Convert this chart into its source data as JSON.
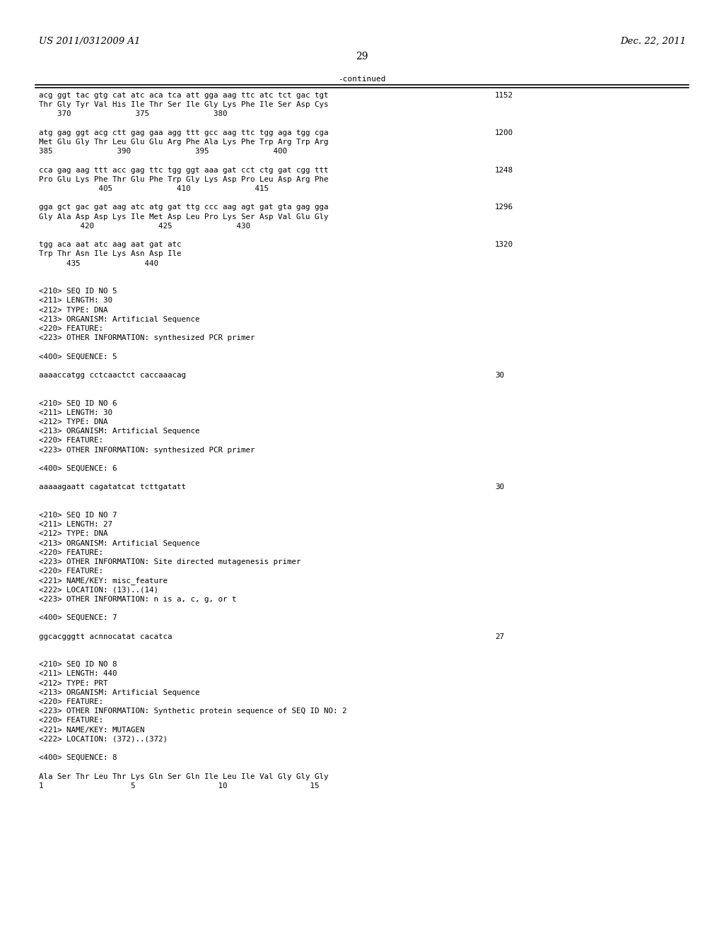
{
  "header_left": "US 2011/0312009 A1",
  "header_right": "Dec. 22, 2011",
  "page_number": "29",
  "continued_label": "-continued",
  "background_color": "#ffffff",
  "text_color": "#000000",
  "content_lines": [
    {
      "text": "acg ggt tac gtg cat atc aca tca att gga aag ttc atc tct gac tgt",
      "num": "1152",
      "indent": false
    },
    {
      "text": "Thr Gly Tyr Val His Ile Thr Ser Ile Gly Lys Phe Ile Ser Asp Cys",
      "num": "",
      "indent": false
    },
    {
      "text": "    370              375              380",
      "num": "",
      "indent": false
    },
    {
      "text": "",
      "num": "",
      "indent": false
    },
    {
      "text": "atg gag ggt acg ctt gag gaa agg ttt gcc aag ttc tgg aga tgg cga",
      "num": "1200",
      "indent": false
    },
    {
      "text": "Met Glu Gly Thr Leu Glu Glu Arg Phe Ala Lys Phe Trp Arg Trp Arg",
      "num": "",
      "indent": false
    },
    {
      "text": "385              390              395              400",
      "num": "",
      "indent": false
    },
    {
      "text": "",
      "num": "",
      "indent": false
    },
    {
      "text": "cca gag aag ttt acc gag ttc tgg ggt aaa gat cct ctg gat cgg ttt",
      "num": "1248",
      "indent": false
    },
    {
      "text": "Pro Glu Lys Phe Thr Glu Phe Trp Gly Lys Asp Pro Leu Asp Arg Phe",
      "num": "",
      "indent": false
    },
    {
      "text": "             405              410              415",
      "num": "",
      "indent": false
    },
    {
      "text": "",
      "num": "",
      "indent": false
    },
    {
      "text": "gga gct gac gat aag atc atg gat ttg ccc aag agt gat gta gag gga",
      "num": "1296",
      "indent": false
    },
    {
      "text": "Gly Ala Asp Asp Lys Ile Met Asp Leu Pro Lys Ser Asp Val Glu Gly",
      "num": "",
      "indent": false
    },
    {
      "text": "         420              425              430",
      "num": "",
      "indent": false
    },
    {
      "text": "",
      "num": "",
      "indent": false
    },
    {
      "text": "tgg aca aat atc aag aat gat atc",
      "num": "1320",
      "indent": false
    },
    {
      "text": "Trp Thr Asn Ile Lys Asn Asp Ile",
      "num": "",
      "indent": false
    },
    {
      "text": "      435              440",
      "num": "",
      "indent": false
    },
    {
      "text": "",
      "num": "",
      "indent": false
    },
    {
      "text": "",
      "num": "",
      "indent": false
    },
    {
      "text": "<210> SEQ ID NO 5",
      "num": "",
      "indent": false
    },
    {
      "text": "<211> LENGTH: 30",
      "num": "",
      "indent": false
    },
    {
      "text": "<212> TYPE: DNA",
      "num": "",
      "indent": false
    },
    {
      "text": "<213> ORGANISM: Artificial Sequence",
      "num": "",
      "indent": false
    },
    {
      "text": "<220> FEATURE:",
      "num": "",
      "indent": false
    },
    {
      "text": "<223> OTHER INFORMATION: synthesized PCR primer",
      "num": "",
      "indent": false
    },
    {
      "text": "",
      "num": "",
      "indent": false
    },
    {
      "text": "<400> SEQUENCE: 5",
      "num": "",
      "indent": false
    },
    {
      "text": "",
      "num": "",
      "indent": false
    },
    {
      "text": "aaaaccatgg cctcaactct caccaaacag",
      "num": "30",
      "indent": false
    },
    {
      "text": "",
      "num": "",
      "indent": false
    },
    {
      "text": "",
      "num": "",
      "indent": false
    },
    {
      "text": "<210> SEQ ID NO 6",
      "num": "",
      "indent": false
    },
    {
      "text": "<211> LENGTH: 30",
      "num": "",
      "indent": false
    },
    {
      "text": "<212> TYPE: DNA",
      "num": "",
      "indent": false
    },
    {
      "text": "<213> ORGANISM: Artificial Sequence",
      "num": "",
      "indent": false
    },
    {
      "text": "<220> FEATURE:",
      "num": "",
      "indent": false
    },
    {
      "text": "<223> OTHER INFORMATION: synthesized PCR primer",
      "num": "",
      "indent": false
    },
    {
      "text": "",
      "num": "",
      "indent": false
    },
    {
      "text": "<400> SEQUENCE: 6",
      "num": "",
      "indent": false
    },
    {
      "text": "",
      "num": "",
      "indent": false
    },
    {
      "text": "aaaaagaatt cagatatcat tcttgatatt",
      "num": "30",
      "indent": false
    },
    {
      "text": "",
      "num": "",
      "indent": false
    },
    {
      "text": "",
      "num": "",
      "indent": false
    },
    {
      "text": "<210> SEQ ID NO 7",
      "num": "",
      "indent": false
    },
    {
      "text": "<211> LENGTH: 27",
      "num": "",
      "indent": false
    },
    {
      "text": "<212> TYPE: DNA",
      "num": "",
      "indent": false
    },
    {
      "text": "<213> ORGANISM: Artificial Sequence",
      "num": "",
      "indent": false
    },
    {
      "text": "<220> FEATURE:",
      "num": "",
      "indent": false
    },
    {
      "text": "<223> OTHER INFORMATION: Site directed mutagenesis primer",
      "num": "",
      "indent": false
    },
    {
      "text": "<220> FEATURE:",
      "num": "",
      "indent": false
    },
    {
      "text": "<221> NAME/KEY: misc_feature",
      "num": "",
      "indent": false
    },
    {
      "text": "<222> LOCATION: (13)..(14)",
      "num": "",
      "indent": false
    },
    {
      "text": "<223> OTHER INFORMATION: n is a, c, g, or t",
      "num": "",
      "indent": false
    },
    {
      "text": "",
      "num": "",
      "indent": false
    },
    {
      "text": "<400> SEQUENCE: 7",
      "num": "",
      "indent": false
    },
    {
      "text": "",
      "num": "",
      "indent": false
    },
    {
      "text": "ggcacgggtt acnnocatat cacatca",
      "num": "27",
      "indent": false
    },
    {
      "text": "",
      "num": "",
      "indent": false
    },
    {
      "text": "",
      "num": "",
      "indent": false
    },
    {
      "text": "<210> SEQ ID NO 8",
      "num": "",
      "indent": false
    },
    {
      "text": "<211> LENGTH: 440",
      "num": "",
      "indent": false
    },
    {
      "text": "<212> TYPE: PRT",
      "num": "",
      "indent": false
    },
    {
      "text": "<213> ORGANISM: Artificial Sequence",
      "num": "",
      "indent": false
    },
    {
      "text": "<220> FEATURE:",
      "num": "",
      "indent": false
    },
    {
      "text": "<223> OTHER INFORMATION: Synthetic protein sequence of SEQ ID NO: 2",
      "num": "",
      "indent": false
    },
    {
      "text": "<220> FEATURE:",
      "num": "",
      "indent": false
    },
    {
      "text": "<221> NAME/KEY: MUTAGEN",
      "num": "",
      "indent": false
    },
    {
      "text": "<222> LOCATION: (372)..(372)",
      "num": "",
      "indent": false
    },
    {
      "text": "",
      "num": "",
      "indent": false
    },
    {
      "text": "<400> SEQUENCE: 8",
      "num": "",
      "indent": false
    },
    {
      "text": "",
      "num": "",
      "indent": false
    },
    {
      "text": "Ala Ser Thr Leu Thr Lys Gln Ser Gln Ile Leu Ile Val Gly Gly Gly",
      "num": "",
      "indent": false
    },
    {
      "text": "1                   5                  10                  15",
      "num": "",
      "indent": false
    }
  ]
}
